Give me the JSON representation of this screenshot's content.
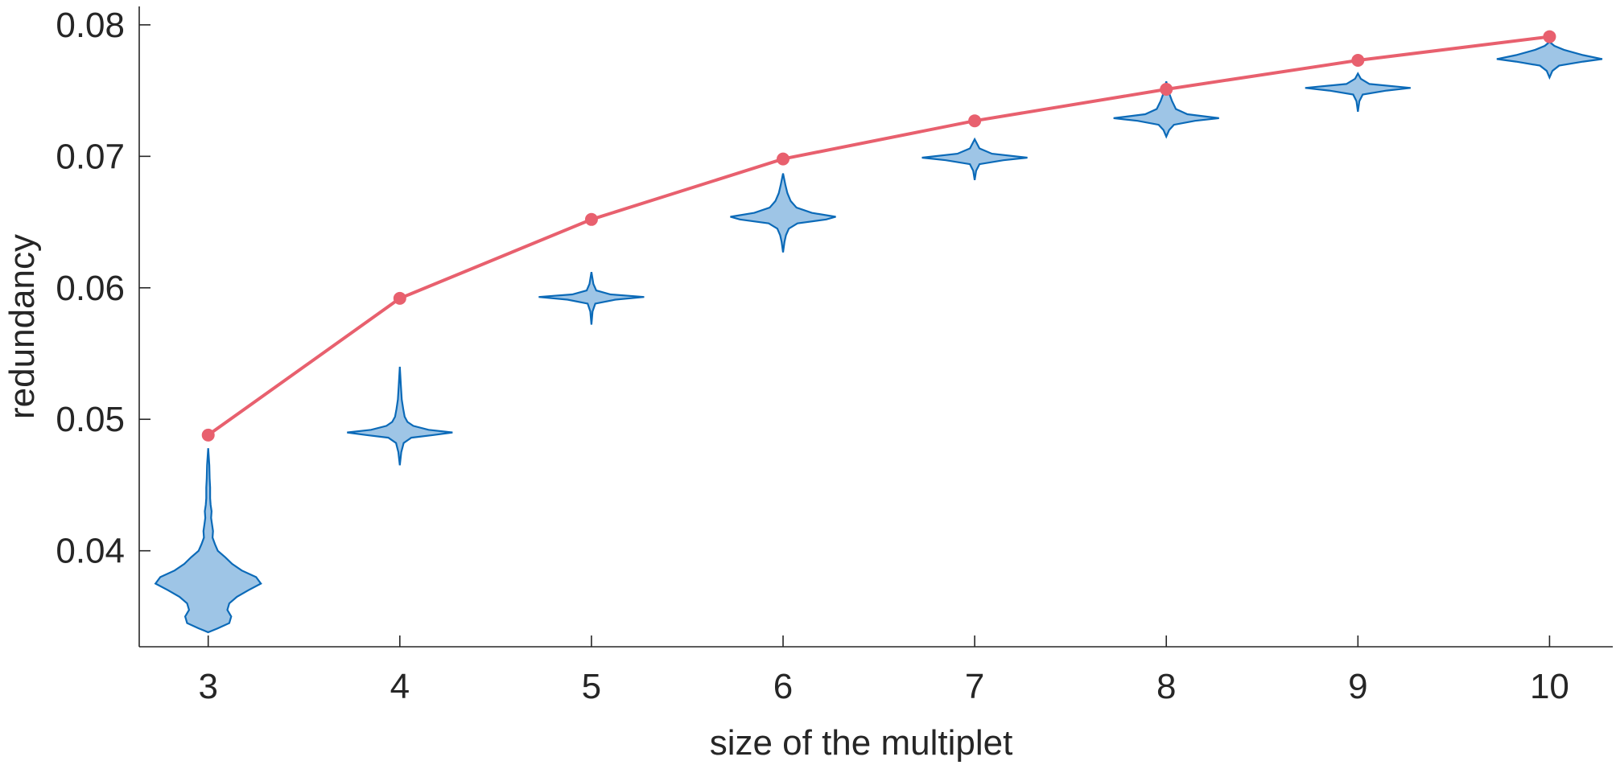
{
  "chart_data": {
    "type": "violin",
    "xlabel": "size of the multiplet",
    "ylabel": "redundancy",
    "xlim": [
      2.64,
      10.33
    ],
    "ylim": [
      0.0327,
      0.0814
    ],
    "x_ticks": [
      3,
      4,
      5,
      6,
      7,
      8,
      9,
      10
    ],
    "y_ticks": [
      0.04,
      0.05,
      0.06,
      0.07,
      0.08
    ],
    "y_tick_labels": [
      "0.04",
      "0.05",
      "0.06",
      "0.07",
      "0.08"
    ],
    "grid": false,
    "colors": {
      "violin_fill": "#9ec5e6",
      "violin_edge": "#0b6ab8",
      "max_line": "#e8606e",
      "axis": "#262626"
    },
    "max_series": {
      "x": [
        3,
        4,
        5,
        6,
        7,
        8,
        9,
        10
      ],
      "y": [
        0.0488,
        0.0592,
        0.0652,
        0.0698,
        0.0727,
        0.0751,
        0.0773,
        0.0791
      ]
    },
    "violins": [
      {
        "x": 3,
        "min": 0.0338,
        "max": 0.0478,
        "profile": [
          [
            0.0338,
            0.0
          ],
          [
            0.0341,
            0.1
          ],
          [
            0.0345,
            0.22
          ],
          [
            0.035,
            0.24
          ],
          [
            0.0355,
            0.2
          ],
          [
            0.036,
            0.22
          ],
          [
            0.0365,
            0.3
          ],
          [
            0.037,
            0.42
          ],
          [
            0.0375,
            0.55
          ],
          [
            0.038,
            0.5
          ],
          [
            0.0385,
            0.35
          ],
          [
            0.039,
            0.25
          ],
          [
            0.0395,
            0.18
          ],
          [
            0.04,
            0.1
          ],
          [
            0.0405,
            0.07
          ],
          [
            0.041,
            0.045
          ],
          [
            0.0415,
            0.05
          ],
          [
            0.042,
            0.04
          ],
          [
            0.0425,
            0.03
          ],
          [
            0.043,
            0.035
          ],
          [
            0.0435,
            0.025
          ],
          [
            0.044,
            0.02
          ],
          [
            0.0448,
            0.02
          ],
          [
            0.0455,
            0.015
          ],
          [
            0.0465,
            0.012
          ],
          [
            0.0478,
            0.0
          ]
        ]
      },
      {
        "x": 4,
        "min": 0.0465,
        "max": 0.054,
        "profile": [
          [
            0.0465,
            0.0
          ],
          [
            0.0475,
            0.015
          ],
          [
            0.0482,
            0.04
          ],
          [
            0.0486,
            0.12
          ],
          [
            0.0488,
            0.35
          ],
          [
            0.049,
            0.55
          ],
          [
            0.0492,
            0.3
          ],
          [
            0.0495,
            0.14
          ],
          [
            0.0498,
            0.08
          ],
          [
            0.0502,
            0.05
          ],
          [
            0.0508,
            0.035
          ],
          [
            0.0515,
            0.02
          ],
          [
            0.0525,
            0.012
          ],
          [
            0.054,
            0.0
          ]
        ]
      },
      {
        "x": 5,
        "min": 0.0572,
        "max": 0.0612,
        "profile": [
          [
            0.0572,
            0.0
          ],
          [
            0.0582,
            0.012
          ],
          [
            0.0588,
            0.04
          ],
          [
            0.0591,
            0.25
          ],
          [
            0.0593,
            0.55
          ],
          [
            0.0595,
            0.2
          ],
          [
            0.0598,
            0.05
          ],
          [
            0.0603,
            0.02
          ],
          [
            0.0612,
            0.0
          ]
        ]
      },
      {
        "x": 6,
        "min": 0.0627,
        "max": 0.0687,
        "profile": [
          [
            0.0627,
            0.0
          ],
          [
            0.0635,
            0.015
          ],
          [
            0.064,
            0.03
          ],
          [
            0.0645,
            0.06
          ],
          [
            0.0649,
            0.15
          ],
          [
            0.0652,
            0.45
          ],
          [
            0.0654,
            0.55
          ],
          [
            0.0657,
            0.3
          ],
          [
            0.0661,
            0.14
          ],
          [
            0.0666,
            0.08
          ],
          [
            0.0672,
            0.045
          ],
          [
            0.0678,
            0.025
          ],
          [
            0.0687,
            0.0
          ]
        ]
      },
      {
        "x": 7,
        "min": 0.0682,
        "max": 0.0713,
        "profile": [
          [
            0.0682,
            0.0
          ],
          [
            0.0689,
            0.015
          ],
          [
            0.0694,
            0.05
          ],
          [
            0.0697,
            0.3
          ],
          [
            0.0699,
            0.55
          ],
          [
            0.0702,
            0.18
          ],
          [
            0.0706,
            0.05
          ],
          [
            0.0713,
            0.0
          ]
        ]
      },
      {
        "x": 8,
        "min": 0.0715,
        "max": 0.0757,
        "profile": [
          [
            0.0715,
            0.0
          ],
          [
            0.072,
            0.03
          ],
          [
            0.0724,
            0.08
          ],
          [
            0.0727,
            0.3
          ],
          [
            0.0729,
            0.55
          ],
          [
            0.0732,
            0.22
          ],
          [
            0.0736,
            0.1
          ],
          [
            0.0742,
            0.06
          ],
          [
            0.0748,
            0.03
          ],
          [
            0.0757,
            0.0
          ]
        ]
      },
      {
        "x": 9,
        "min": 0.0734,
        "max": 0.0763,
        "profile": [
          [
            0.0734,
            0.0
          ],
          [
            0.0742,
            0.015
          ],
          [
            0.0747,
            0.05
          ],
          [
            0.075,
            0.3
          ],
          [
            0.0752,
            0.55
          ],
          [
            0.0755,
            0.12
          ],
          [
            0.0759,
            0.03
          ],
          [
            0.0763,
            0.0
          ]
        ]
      },
      {
        "x": 10,
        "min": 0.076,
        "max": 0.0787,
        "profile": [
          [
            0.076,
            0.0
          ],
          [
            0.0765,
            0.03
          ],
          [
            0.0769,
            0.1
          ],
          [
            0.0772,
            0.35
          ],
          [
            0.0774,
            0.55
          ],
          [
            0.0777,
            0.35
          ],
          [
            0.0781,
            0.15
          ],
          [
            0.0784,
            0.05
          ],
          [
            0.0787,
            0.0
          ]
        ]
      }
    ]
  }
}
